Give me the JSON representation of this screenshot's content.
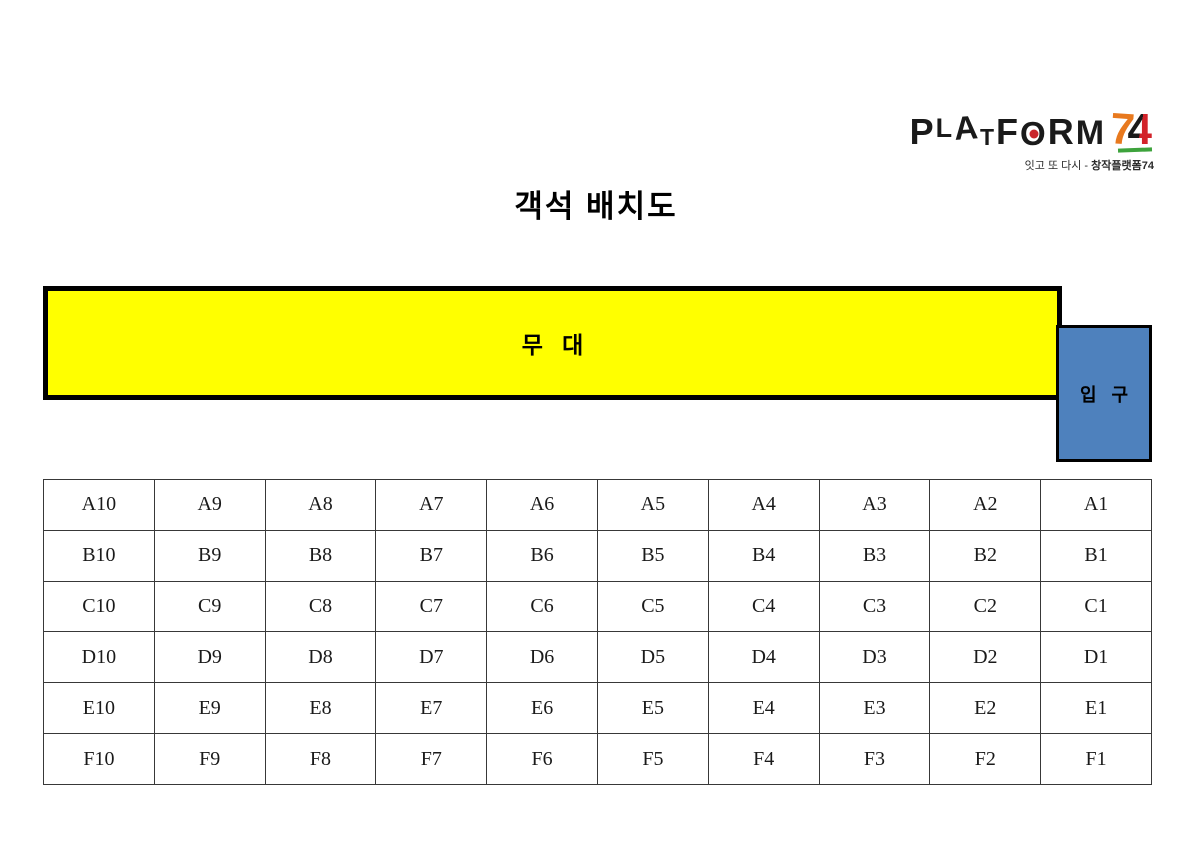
{
  "logo": {
    "brand_letters": "PLATFORM",
    "number_7": "7",
    "number_4": "4",
    "tagline_regular": "잇고 또 다시 - ",
    "tagline_bold": "창작플랫폼74",
    "colors": {
      "letters": "#1a1a1a",
      "seven_orange": "#e8791e",
      "four_red": "#d2232a",
      "o_dot_red": "#c9252b",
      "underline_green": "#3da33c"
    }
  },
  "title": {
    "text": "객석 배치도"
  },
  "stage": {
    "label": "무   대",
    "fill": "#ffff00",
    "border_color": "#000000"
  },
  "entrance": {
    "label": "입   구",
    "fill": "#4e81bd",
    "border_color": "#000000"
  },
  "seat_grid": {
    "rows": [
      "A",
      "B",
      "C",
      "D",
      "E",
      "F"
    ],
    "columns": [
      "10",
      "9",
      "8",
      "7",
      "6",
      "5",
      "4",
      "3",
      "2",
      "1"
    ],
    "cells": [
      [
        "A10",
        "A9",
        "A8",
        "A7",
        "A6",
        "A5",
        "A4",
        "A3",
        "A2",
        "A1"
      ],
      [
        "B10",
        "B9",
        "B8",
        "B7",
        "B6",
        "B5",
        "B4",
        "B3",
        "B2",
        "B1"
      ],
      [
        "C10",
        "C9",
        "C8",
        "C7",
        "C6",
        "C5",
        "C4",
        "C3",
        "C2",
        "C1"
      ],
      [
        "D10",
        "D9",
        "D8",
        "D7",
        "D6",
        "D5",
        "D4",
        "D3",
        "D2",
        "D1"
      ],
      [
        "E10",
        "E9",
        "E8",
        "E7",
        "E6",
        "E5",
        "E4",
        "E3",
        "E2",
        "E1"
      ],
      [
        "F10",
        "F9",
        "F8",
        "F7",
        "F6",
        "F5",
        "F4",
        "F3",
        "F2",
        "F1"
      ]
    ]
  }
}
